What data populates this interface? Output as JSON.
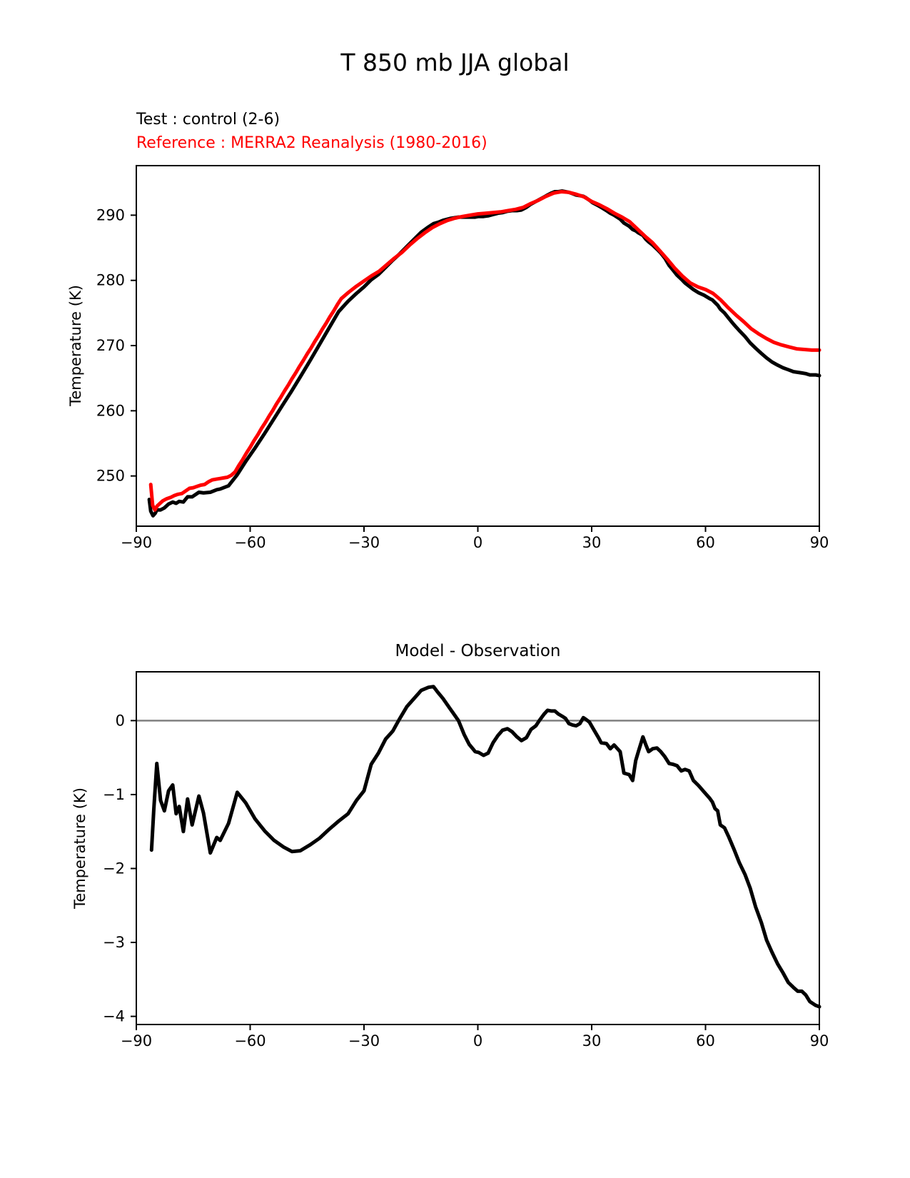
{
  "figure": {
    "title": "T 850 mb JJA global",
    "legend": {
      "test": "Test : control (2-6)",
      "reference": "Reference : MERRA2 Reanalysis (1980-2016)"
    },
    "colors": {
      "test": "#000000",
      "reference": "#ff0000",
      "zero_line": "#808080",
      "axis": "#000000"
    }
  },
  "chart_data": [
    {
      "type": "line",
      "title": "",
      "xlabel": "",
      "ylabel": "Temperature (K)",
      "xlim": [
        -90,
        90
      ],
      "ylim": [
        242.3,
        297.6
      ],
      "grid": false,
      "xticks": {
        "values": [
          -90,
          -60,
          -30,
          0,
          30,
          60,
          90
        ],
        "labels": [
          "−90",
          "−60",
          "−30",
          "0",
          "30",
          "60",
          "90"
        ]
      },
      "yticks": {
        "values": [
          250,
          260,
          270,
          280,
          290
        ],
        "labels": [
          "250",
          "260",
          "270",
          "280",
          "290"
        ]
      },
      "series": [
        {
          "id": "test",
          "name": "Test : control (2-6)",
          "color": "#000000",
          "x": [
            -86.6,
            -86.2,
            -85.6,
            -85.0,
            -84.6,
            -83.6,
            -82.6,
            -81.5,
            -80.4,
            -79.5,
            -78.7,
            -77.6,
            -76.5,
            -75.3,
            -73.5,
            -72.3,
            -70.5,
            -68.8,
            -67.9,
            -65.7,
            -63.4,
            -61.2,
            -58.7,
            -56.2,
            -53.7,
            -51.2,
            -49,
            -46.8,
            -44.2,
            -41.7,
            -39.2,
            -36.7,
            -34.2,
            -32,
            -30,
            -28.1,
            -26.2,
            -24.3,
            -22.4,
            -20.9,
            -18.7,
            -16.8,
            -14.9,
            -13,
            -11.7,
            -10.5,
            -9.2,
            -7.3,
            -5.1,
            -3.6,
            -2.3,
            -0.7,
            0.2,
            1.5,
            2.7,
            4,
            5.3,
            6.5,
            7.8,
            9,
            10.3,
            11.5,
            12.8,
            14,
            15.3,
            16.2,
            17.5,
            18.4,
            19.4,
            20.3,
            21.2,
            22.2,
            23.1,
            24,
            25,
            25.9,
            26.9,
            27.8,
            28.4,
            29.4,
            30.3,
            31.9,
            32.5,
            33.9,
            34.9,
            35.9,
            37.5,
            38.5,
            39.9,
            40.8,
            41.6,
            42.3,
            43.5,
            44.3,
            45,
            46.1,
            47.2,
            48.2,
            49.3,
            50.4,
            51.4,
            52.5,
            53.6,
            54.6,
            55.7,
            56.8,
            58.2,
            59.7,
            61.1,
            61.8,
            62.5,
            63.2,
            63.9,
            65,
            66.1,
            67.5,
            68.9,
            70.4,
            71.8,
            73.2,
            74.7,
            76.1,
            77.5,
            79,
            80.4,
            81.8,
            83.2,
            84.3,
            85.4,
            86.4,
            87.5,
            89,
            90
          ],
          "y": [
            246.4,
            244.6,
            243.9,
            244.3,
            244.8,
            244.8,
            245.1,
            245.7,
            246.0,
            245.8,
            246.1,
            246.0,
            246.8,
            246.8,
            247.5,
            247.4,
            247.5,
            247.9,
            248.0,
            248.5,
            250.2,
            252.2,
            254.3,
            256.5,
            258.8,
            261.1,
            263.1,
            265.2,
            267.7,
            270.2,
            272.7,
            275.2,
            276.8,
            278.0,
            279.0,
            280.1,
            280.9,
            282.0,
            283.1,
            283.9,
            285.2,
            286.3,
            287.4,
            288.2,
            288.7,
            288.9,
            289.2,
            289.5,
            289.7,
            289.7,
            289.7,
            289.7,
            289.8,
            289.8,
            289.9,
            290.1,
            290.3,
            290.4,
            290.6,
            290.7,
            290.7,
            290.8,
            291.2,
            291.7,
            292.1,
            292.4,
            292.8,
            293.1,
            293.4,
            293.6,
            293.6,
            293.7,
            293.6,
            293.5,
            293.3,
            293.1,
            293.0,
            292.9,
            292.7,
            292.3,
            291.9,
            291.4,
            291.2,
            290.7,
            290.3,
            290.0,
            289.4,
            288.8,
            288.3,
            287.8,
            287.6,
            287.3,
            286.9,
            286.3,
            285.9,
            285.4,
            284.8,
            284.2,
            283.4,
            282.3,
            281.6,
            280.8,
            280.2,
            279.6,
            279.1,
            278.6,
            278.1,
            277.7,
            277.2,
            277.0,
            276.6,
            276.2,
            275.6,
            275.0,
            274.2,
            273.2,
            272.3,
            271.4,
            270.4,
            269.6,
            268.8,
            268.1,
            267.5,
            267.0,
            266.6,
            266.3,
            266.0,
            265.9,
            265.8,
            265.7,
            265.5,
            265.5,
            265.4
          ]
        },
        {
          "id": "reference",
          "name": "Reference : MERRA2 Reanalysis (1980-2016)",
          "color": "#ff0000",
          "x": [
            -86.2,
            -85.7,
            -85.1,
            -84.5,
            -83,
            -82,
            -81,
            -80,
            -79,
            -78,
            -77,
            -76,
            -75,
            -74,
            -73,
            -72,
            -71,
            -70,
            -69,
            -68,
            -67,
            -66,
            -65,
            -64,
            -63,
            -62,
            -61,
            -60,
            -59,
            -58,
            -57,
            -56,
            -55,
            -54,
            -53,
            -52,
            -51,
            -50,
            -49,
            -48,
            -47,
            -46,
            -45,
            -44,
            -43,
            -42,
            -41,
            -40,
            -39,
            -38,
            -37,
            -36,
            -34,
            -32,
            -30,
            -28,
            -26,
            -24,
            -22,
            -20,
            -18,
            -16,
            -14,
            -12,
            -10,
            -8,
            -6,
            -4,
            -2,
            0,
            2,
            4,
            6,
            8,
            10,
            12,
            14,
            16,
            18,
            20,
            22,
            24,
            26,
            28,
            30,
            32,
            34,
            36,
            38,
            40,
            42,
            44,
            46,
            48,
            50,
            52,
            54,
            56,
            58,
            60,
            62,
            64,
            66,
            68,
            70,
            72,
            74,
            76,
            78,
            80,
            82,
            84,
            86,
            88,
            90
          ],
          "y": [
            248.7,
            245.5,
            244.8,
            245.4,
            246.2,
            246.5,
            246.7,
            247.0,
            247.2,
            247.3,
            247.7,
            248.1,
            248.2,
            248.4,
            248.6,
            248.7,
            249.1,
            249.4,
            249.5,
            249.6,
            249.7,
            249.8,
            250.1,
            250.6,
            251.6,
            252.5,
            253.5,
            254.4,
            255.4,
            256.3,
            257.3,
            258.2,
            259.2,
            260.1,
            261.1,
            262.0,
            263.0,
            263.9,
            264.9,
            265.8,
            266.8,
            267.7,
            268.7,
            269.6,
            270.6,
            271.5,
            272.5,
            273.4,
            274.4,
            275.3,
            276.3,
            277.2,
            278.2,
            279.1,
            279.9,
            280.7,
            281.4,
            282.4,
            283.4,
            284.3,
            285.4,
            286.4,
            287.3,
            288.1,
            288.7,
            289.2,
            289.55,
            289.8,
            290.0,
            290.2,
            290.3,
            290.4,
            290.5,
            290.7,
            290.9,
            291.2,
            291.8,
            292.3,
            292.9,
            293.4,
            293.6,
            293.5,
            293.2,
            292.8,
            292.1,
            291.6,
            291.0,
            290.3,
            289.7,
            289.0,
            287.9,
            286.8,
            285.8,
            284.5,
            283.2,
            281.8,
            280.6,
            279.6,
            279.0,
            278.6,
            278.0,
            277.0,
            275.8,
            274.7,
            273.7,
            272.6,
            271.8,
            271.1,
            270.5,
            270.1,
            269.8,
            269.5,
            269.4,
            269.3,
            269.3
          ]
        }
      ]
    },
    {
      "type": "line",
      "title": "Model - Observation",
      "xlabel": "",
      "ylabel": "Temperature (K)",
      "xlim": [
        -90,
        90
      ],
      "ylim": [
        -4.11,
        0.66
      ],
      "grid": false,
      "zero_line": 0,
      "xticks": {
        "values": [
          -90,
          -60,
          -30,
          0,
          30,
          60,
          90
        ],
        "labels": [
          "−90",
          "−60",
          "−30",
          "0",
          "30",
          "60",
          "90"
        ]
      },
      "yticks": {
        "values": [
          0,
          -1,
          -2,
          -3,
          -4
        ],
        "labels": [
          "0",
          "−1",
          "−2",
          "−3",
          "−4"
        ]
      },
      "series": [
        {
          "id": "diff",
          "name": "Model - Observation",
          "color": "#000000",
          "x": [
            -86,
            -85.4,
            -84.6,
            -83.6,
            -82.6,
            -81.5,
            -80.4,
            -79.5,
            -78.7,
            -77.6,
            -76.5,
            -75.3,
            -73.5,
            -72.3,
            -70.5,
            -68.8,
            -67.9,
            -65.7,
            -63.4,
            -61.2,
            -58.7,
            -56.2,
            -53.7,
            -51.2,
            -49,
            -46.8,
            -44.2,
            -41.7,
            -39.2,
            -36.7,
            -34.2,
            -32,
            -30,
            -28.1,
            -26.2,
            -24.3,
            -22.4,
            -20.9,
            -18.7,
            -16.8,
            -14.9,
            -13,
            -11.7,
            -10.5,
            -9.2,
            -7.3,
            -5.1,
            -3.6,
            -2.3,
            -0.7,
            0.2,
            1.5,
            2.7,
            4,
            5.3,
            6.5,
            7.8,
            9,
            10.3,
            11.5,
            12.8,
            14,
            15.3,
            16.2,
            17.5,
            18.4,
            19.4,
            20.3,
            21.2,
            22.2,
            23.1,
            24,
            25,
            25.9,
            26.9,
            27.8,
            28.4,
            29.4,
            30.3,
            31.9,
            32.5,
            33.9,
            34.9,
            35.9,
            37.5,
            38.5,
            39.9,
            40.8,
            41.6,
            42.3,
            43.5,
            44.3,
            45,
            46.1,
            47.2,
            48.2,
            49.3,
            50.4,
            51.4,
            52.5,
            53.6,
            54.6,
            55.7,
            56.8,
            58.2,
            59.7,
            61.1,
            61.8,
            62.5,
            63.2,
            63.9,
            65,
            66.1,
            67.5,
            68.9,
            70.4,
            71.8,
            73.2,
            74.7,
            76.1,
            77.5,
            79,
            80.4,
            81.8,
            83.2,
            84.3,
            85.4,
            86.4,
            87.5,
            89,
            90
          ],
          "y": [
            -1.75,
            -1.2,
            -0.58,
            -1.08,
            -1.22,
            -0.95,
            -0.87,
            -1.26,
            -1.16,
            -1.5,
            -1.06,
            -1.41,
            -1.02,
            -1.25,
            -1.79,
            -1.58,
            -1.62,
            -1.39,
            -0.97,
            -1.11,
            -1.33,
            -1.49,
            -1.62,
            -1.71,
            -1.77,
            -1.76,
            -1.68,
            -1.59,
            -1.47,
            -1.36,
            -1.26,
            -1.08,
            -0.95,
            -0.59,
            -0.44,
            -0.25,
            -0.14,
            0.0,
            0.19,
            0.3,
            0.41,
            0.45,
            0.46,
            0.38,
            0.3,
            0.16,
            0.0,
            -0.19,
            -0.32,
            -0.42,
            -0.43,
            -0.47,
            -0.44,
            -0.3,
            -0.2,
            -0.13,
            -0.11,
            -0.15,
            -0.22,
            -0.27,
            -0.23,
            -0.12,
            -0.07,
            0.0,
            0.09,
            0.14,
            0.13,
            0.13,
            0.09,
            0.06,
            0.03,
            -0.04,
            -0.06,
            -0.07,
            -0.04,
            0.04,
            0.02,
            -0.02,
            -0.1,
            -0.24,
            -0.3,
            -0.31,
            -0.38,
            -0.33,
            -0.42,
            -0.71,
            -0.73,
            -0.81,
            -0.54,
            -0.42,
            -0.22,
            -0.33,
            -0.42,
            -0.38,
            -0.37,
            -0.42,
            -0.49,
            -0.58,
            -0.59,
            -0.61,
            -0.68,
            -0.66,
            -0.68,
            -0.81,
            -0.88,
            -0.97,
            -1.05,
            -1.1,
            -1.19,
            -1.22,
            -1.41,
            -1.45,
            -1.57,
            -1.74,
            -1.92,
            -2.08,
            -2.27,
            -2.52,
            -2.73,
            -2.97,
            -3.13,
            -3.29,
            -3.41,
            -3.54,
            -3.61,
            -3.66,
            -3.66,
            -3.71,
            -3.8,
            -3.85,
            -3.87
          ]
        }
      ]
    }
  ]
}
